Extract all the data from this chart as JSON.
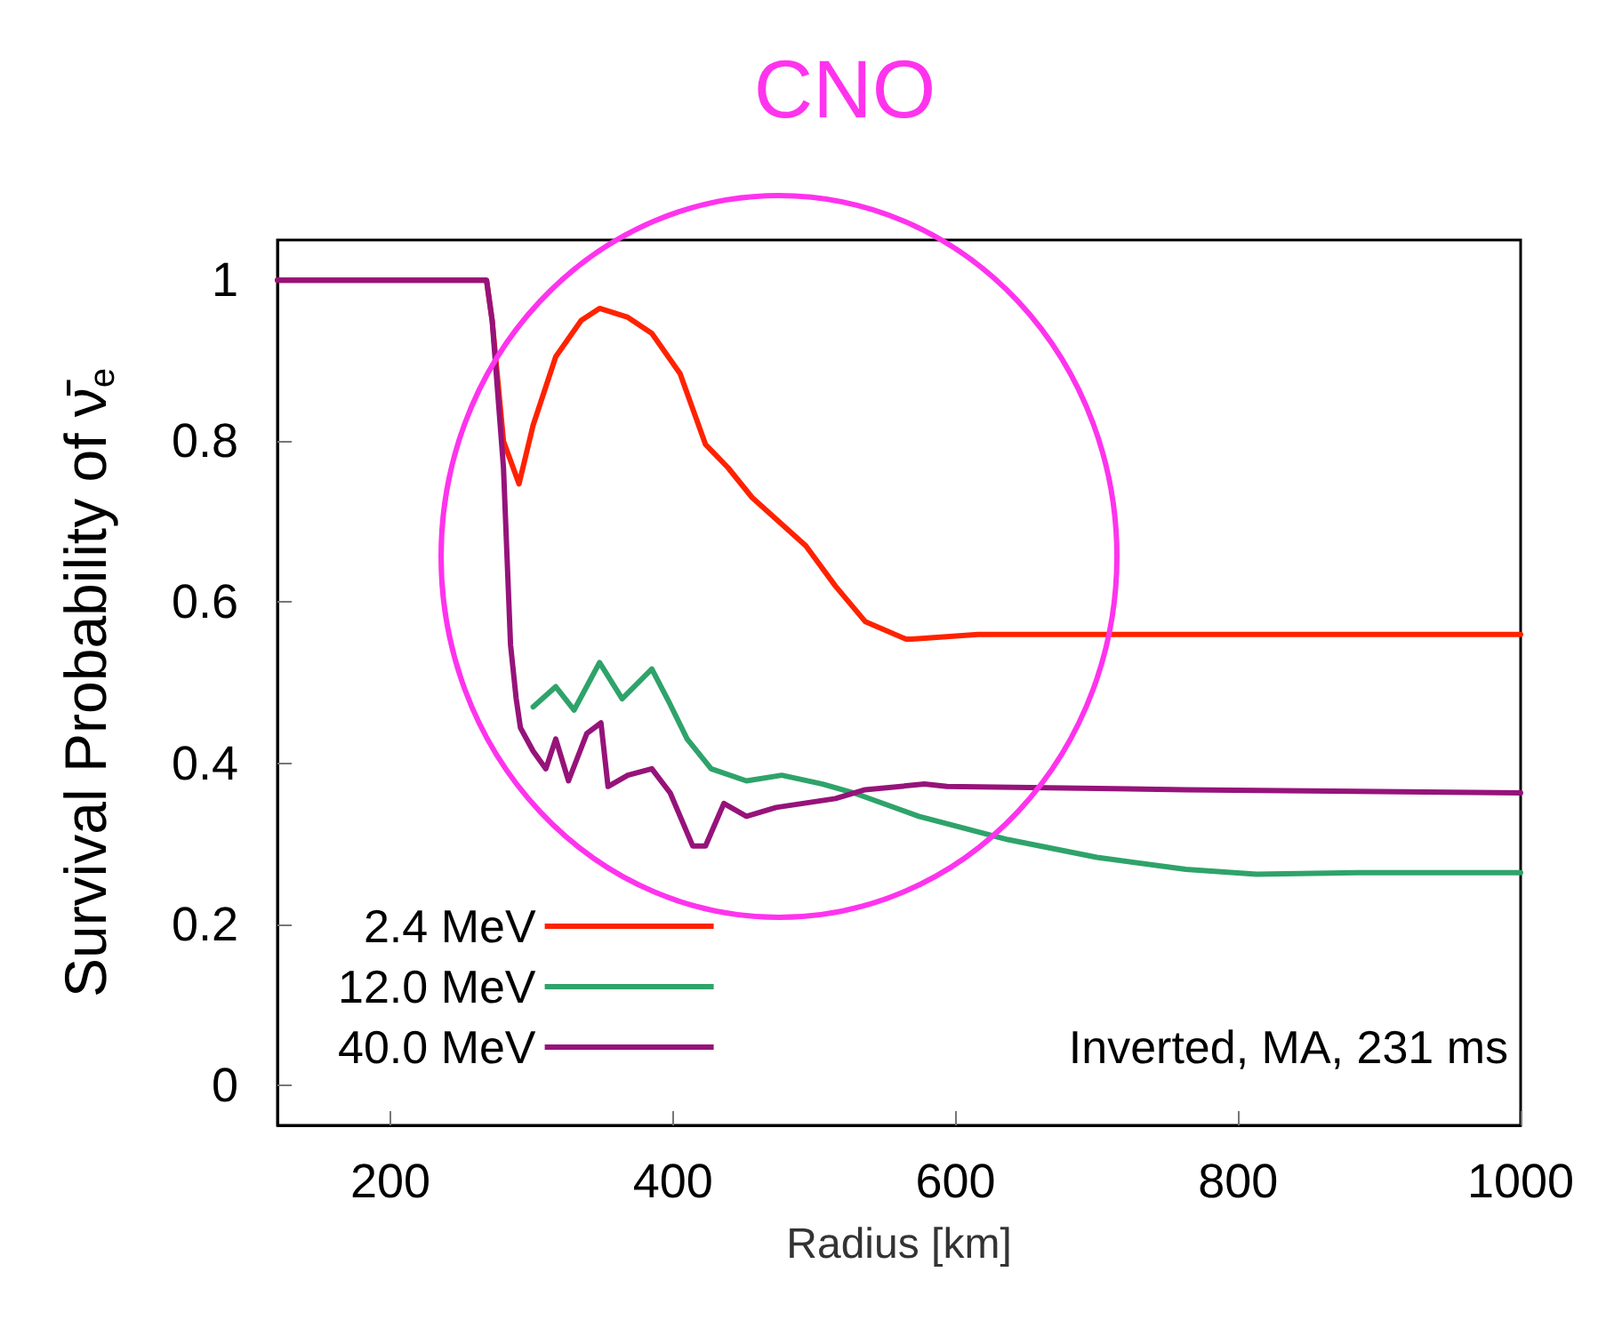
{
  "chart_data": {
    "type": "line",
    "title": "CNO",
    "xlabel": "Radius [km]",
    "ylabel": "Survival Probability of ν̄$_{e}$",
    "xlim": [
      120,
      1000
    ],
    "xticks": [
      200,
      400,
      600,
      800,
      1000
    ],
    "ylim": [
      -0.05,
      1.05
    ],
    "yticks": [
      0,
      0.2,
      0.4,
      0.6,
      0.8,
      1
    ],
    "grid": false,
    "legend": "bottom left",
    "marker": "none",
    "line_style": "solid",
    "annotations": [
      "Inverted, MA, 231 ms"
    ],
    "series": [
      {
        "name": "2.4 MeV",
        "color": "#ff2200",
        "x": [
          120,
          268,
          272,
          280,
          291,
          301,
          317,
          335,
          348,
          368,
          385,
          405,
          423,
          439,
          456,
          494,
          515,
          536,
          565,
          569,
          616,
          679,
          1000
        ],
        "values": [
          1,
          1,
          0.95,
          0.8,
          0.747,
          0.82,
          0.905,
          0.95,
          0.965,
          0.954,
          0.934,
          0.884,
          0.796,
          0.767,
          0.73,
          0.67,
          0.62,
          0.576,
          0.554,
          0.554,
          0.56,
          0.56,
          0.56
        ]
      },
      {
        "name": "12.0 MeV",
        "color": "#2ea36a",
        "x": [
          301,
          317,
          330,
          348,
          364,
          385,
          398,
          410,
          427,
          452,
          477,
          506,
          528,
          574,
          637,
          700,
          763,
          813,
          888,
          1000
        ],
        "values": [
          0.47,
          0.495,
          0.466,
          0.525,
          0.48,
          0.517,
          0.473,
          0.43,
          0.393,
          0.378,
          0.385,
          0.374,
          0.363,
          0.334,
          0.305,
          0.283,
          0.268,
          0.262,
          0.264,
          0.264
        ]
      },
      {
        "name": "40.0 MeV",
        "color": "#96137a",
        "x": [
          120,
          268,
          272,
          280,
          285,
          289,
          292,
          301,
          310,
          317,
          326,
          339,
          349,
          354,
          368,
          385,
          398,
          414,
          423,
          436,
          452,
          473,
          515,
          536,
          578,
          594,
          763,
          1000
        ],
        "values": [
          1,
          1,
          0.95,
          0.767,
          0.547,
          0.48,
          0.444,
          0.415,
          0.393,
          0.43,
          0.378,
          0.437,
          0.45,
          0.371,
          0.385,
          0.393,
          0.363,
          0.297,
          0.297,
          0.35,
          0.334,
          0.345,
          0.356,
          0.367,
          0.374,
          0.371,
          0.367,
          0.363
        ]
      }
    ]
  }
}
